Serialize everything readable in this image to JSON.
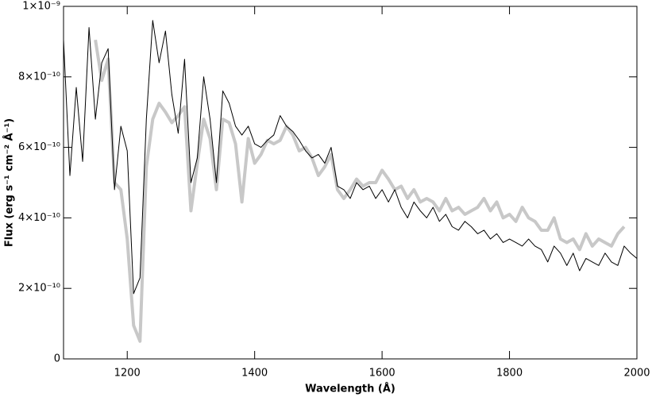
{
  "chart_data": {
    "type": "line",
    "x_label": "Wavelength (Å)",
    "y_label": "Flux (erg s⁻¹ cm⁻² Å⁻¹)",
    "xlim": [
      1100,
      2000
    ],
    "ylim": [
      0,
      1e-09
    ],
    "xticks": [
      1200,
      1400,
      1600,
      1800,
      2000
    ],
    "yticks": [
      0,
      {
        "value": 2e-10,
        "label": "2×10⁻¹⁰"
      },
      {
        "value": 4e-10,
        "label": "4×10⁻¹⁰"
      },
      {
        "value": 6e-10,
        "label": "6×10⁻¹⁰"
      },
      {
        "value": 8e-10,
        "label": "8×10⁻¹⁰"
      },
      {
        "value": 1e-09,
        "label": "1×10⁻⁹"
      }
    ],
    "x": [
      1100,
      1110,
      1120,
      1130,
      1140,
      1150,
      1160,
      1170,
      1180,
      1190,
      1200,
      1210,
      1220,
      1230,
      1240,
      1250,
      1260,
      1270,
      1280,
      1290,
      1300,
      1310,
      1320,
      1330,
      1340,
      1350,
      1360,
      1370,
      1380,
      1390,
      1400,
      1410,
      1420,
      1430,
      1440,
      1450,
      1460,
      1470,
      1480,
      1490,
      1500,
      1510,
      1520,
      1530,
      1540,
      1550,
      1560,
      1570,
      1580,
      1590,
      1600,
      1610,
      1620,
      1630,
      1640,
      1650,
      1660,
      1670,
      1680,
      1690,
      1700,
      1710,
      1720,
      1730,
      1740,
      1750,
      1760,
      1770,
      1780,
      1790,
      1800,
      1810,
      1820,
      1830,
      1840,
      1850,
      1860,
      1870,
      1880,
      1890,
      1900,
      1910,
      1920,
      1930,
      1940,
      1950,
      1960,
      1970,
      1980,
      1990,
      2000
    ],
    "series": [
      {
        "color": "#c8c8c8",
        "values": [
          null,
          null,
          null,
          null,
          null,
          9.05e-10,
          7.9e-10,
          8.5e-10,
          5e-10,
          4.8e-10,
          3.4e-10,
          9.5e-11,
          5e-11,
          5.45e-10,
          6.8e-10,
          7.25e-10,
          7e-10,
          6.7e-10,
          6.9e-10,
          7.15e-10,
          4.2e-10,
          5.55e-10,
          6.8e-10,
          6.25e-10,
          4.8e-10,
          6.8e-10,
          6.7e-10,
          6.1e-10,
          4.45e-10,
          6.25e-10,
          5.55e-10,
          5.8e-10,
          6.2e-10,
          6.1e-10,
          6.2e-10,
          6.6e-10,
          6.35e-10,
          5.9e-10,
          6e-10,
          5.7e-10,
          5.2e-10,
          5.45e-10,
          5.8e-10,
          4.8e-10,
          4.55e-10,
          4.8e-10,
          5.1e-10,
          4.9e-10,
          5e-10,
          5e-10,
          5.35e-10,
          5.1e-10,
          4.8e-10,
          4.9e-10,
          4.55e-10,
          4.8e-10,
          4.45e-10,
          4.55e-10,
          4.45e-10,
          4.2e-10,
          4.55e-10,
          4.2e-10,
          4.3e-10,
          4.1e-10,
          4.2e-10,
          4.3e-10,
          4.55e-10,
          4.2e-10,
          4.45e-10,
          4e-10,
          4.1e-10,
          3.9e-10,
          4.3e-10,
          4e-10,
          3.9e-10,
          3.65e-10,
          3.65e-10,
          4e-10,
          3.4e-10,
          3.3e-10,
          3.4e-10,
          3.1e-10,
          3.55e-10,
          3.2e-10,
          3.4e-10,
          3.3e-10,
          3.2e-10,
          3.55e-10,
          3.75e-10,
          null,
          null
        ]
      },
      {
        "color": "#000000",
        "values": [
          9.05e-10,
          5.2e-10,
          7.7e-10,
          5.6e-10,
          9.4e-10,
          6.8e-10,
          8.4e-10,
          8.8e-10,
          4.8e-10,
          6.6e-10,
          5.9e-10,
          1.85e-10,
          2.3e-10,
          6.8e-10,
          9.6e-10,
          8.4e-10,
          9.3e-10,
          7.5e-10,
          6.4e-10,
          8.5e-10,
          5e-10,
          5.7e-10,
          8e-10,
          6.8e-10,
          5e-10,
          7.6e-10,
          7.25e-10,
          6.6e-10,
          6.35e-10,
          6.6e-10,
          6.1e-10,
          6e-10,
          6.2e-10,
          6.35e-10,
          6.9e-10,
          6.6e-10,
          6.45e-10,
          6.2e-10,
          5.9e-10,
          5.7e-10,
          5.8e-10,
          5.55e-10,
          6e-10,
          4.9e-10,
          4.8e-10,
          4.55e-10,
          5e-10,
          4.8e-10,
          4.9e-10,
          4.55e-10,
          4.8e-10,
          4.45e-10,
          4.8e-10,
          4.3e-10,
          4e-10,
          4.45e-10,
          4.2e-10,
          4e-10,
          4.3e-10,
          3.9e-10,
          4.1e-10,
          3.75e-10,
          3.65e-10,
          3.9e-10,
          3.75e-10,
          3.55e-10,
          3.65e-10,
          3.4e-10,
          3.55e-10,
          3.3e-10,
          3.4e-10,
          3.3e-10,
          3.2e-10,
          3.4e-10,
          3.2e-10,
          3.1e-10,
          2.75e-10,
          3.2e-10,
          3e-10,
          2.65e-10,
          3e-10,
          2.5e-10,
          2.85e-10,
          2.75e-10,
          2.65e-10,
          3e-10,
          2.75e-10,
          2.65e-10,
          3.2e-10,
          3e-10,
          2.85e-10
        ]
      }
    ]
  }
}
